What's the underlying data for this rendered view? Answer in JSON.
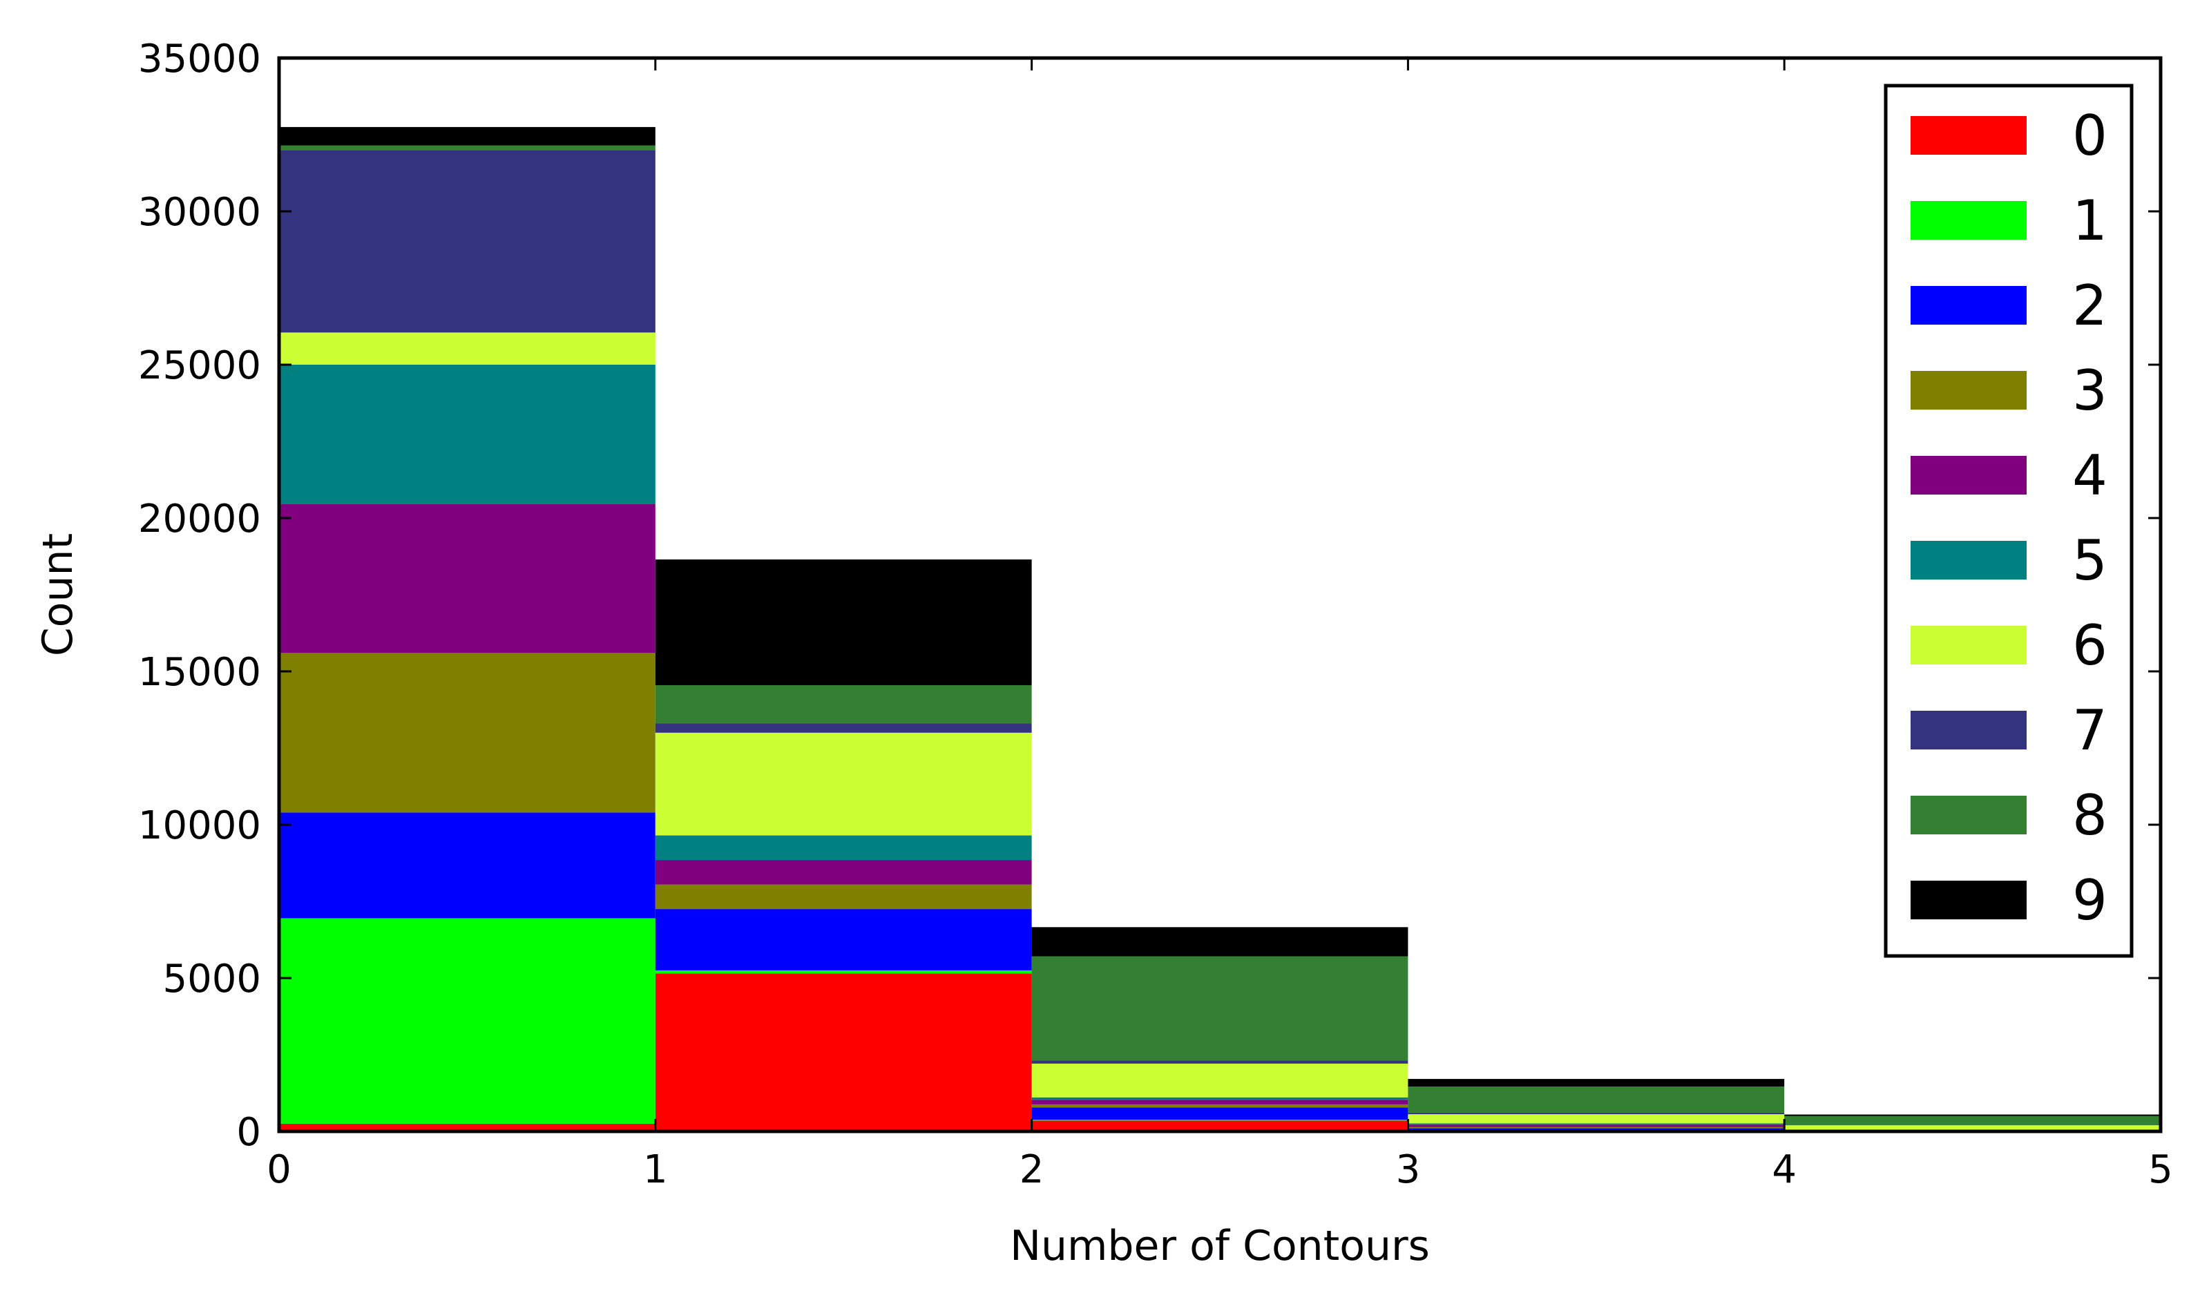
{
  "chart_data": {
    "type": "bar",
    "stacked": true,
    "x_bin_edges": [
      0,
      1,
      2,
      3,
      4,
      5
    ],
    "xlabel": "Number of Contours",
    "ylabel": "Count",
    "xlim": [
      0,
      5
    ],
    "ylim": [
      0,
      35000
    ],
    "x_ticks": [
      "0",
      "1",
      "2",
      "3",
      "4",
      "5"
    ],
    "y_ticks": [
      "0",
      "5000",
      "10000",
      "15000",
      "20000",
      "25000",
      "30000",
      "35000"
    ],
    "grid": false,
    "legend_position": "top-right",
    "series": [
      {
        "name": "0",
        "color": "#ff0000",
        "values": [
          250,
          5150,
          350,
          50,
          0
        ]
      },
      {
        "name": "1",
        "color": "#00ff00",
        "values": [
          6700,
          100,
          30,
          0,
          0
        ]
      },
      {
        "name": "2",
        "color": "#0000ff",
        "values": [
          3450,
          2000,
          400,
          50,
          20
        ]
      },
      {
        "name": "3",
        "color": "#808000",
        "values": [
          5200,
          800,
          100,
          40,
          0
        ]
      },
      {
        "name": "4",
        "color": "#800080",
        "values": [
          4850,
          800,
          150,
          80,
          30
        ]
      },
      {
        "name": "5",
        "color": "#008080",
        "values": [
          4550,
          800,
          80,
          40,
          0
        ]
      },
      {
        "name": "6",
        "color": "#ccff33",
        "values": [
          1050,
          3350,
          1100,
          300,
          150
        ]
      },
      {
        "name": "7",
        "color": "#333380",
        "values": [
          5950,
          300,
          100,
          50,
          0
        ]
      },
      {
        "name": "8",
        "color": "#338033",
        "values": [
          150,
          1250,
          3400,
          850,
          300
        ]
      },
      {
        "name": "9",
        "color": "#000000",
        "values": [
          600,
          4100,
          950,
          250,
          50
        ]
      }
    ]
  }
}
